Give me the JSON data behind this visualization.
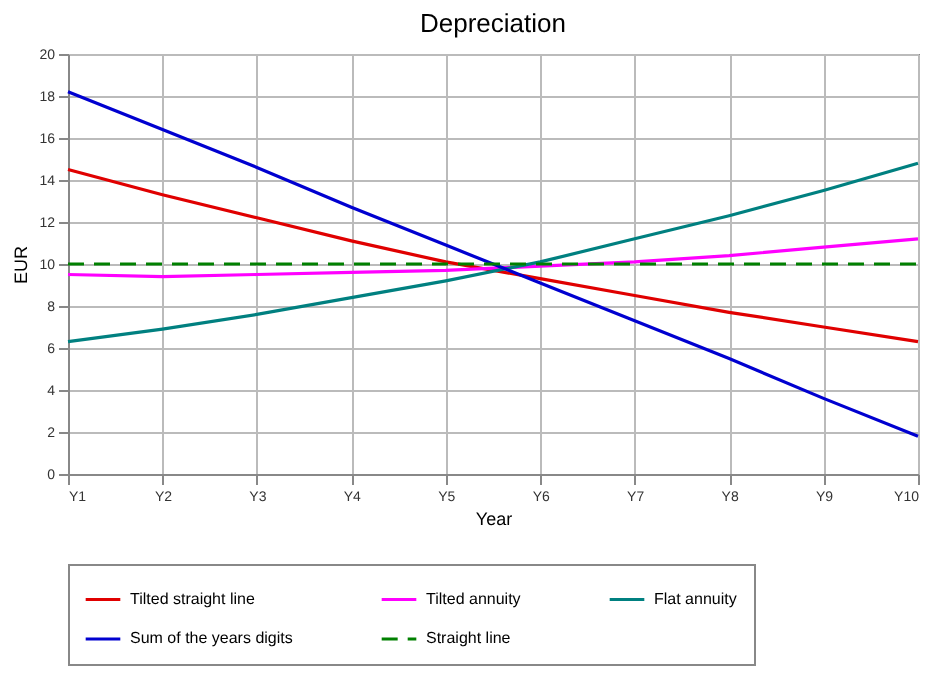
{
  "chart_data": {
    "type": "line",
    "title": "Depreciation",
    "xlabel": "Year",
    "ylabel": "EUR",
    "categories": [
      "Y1",
      "Y2",
      "Y3",
      "Y4",
      "Y5",
      "Y6",
      "Y7",
      "Y8",
      "Y9",
      "Y10"
    ],
    "series": [
      {
        "name": "Tilted straight line",
        "color": "#e00000",
        "line_style": "solid",
        "values": [
          14.5,
          13.3,
          12.2,
          11.1,
          10.1,
          9.3,
          8.5,
          7.7,
          7.0,
          6.3
        ]
      },
      {
        "name": "Tilted annuity",
        "color": "#ff00ff",
        "line_style": "solid",
        "values": [
          9.5,
          9.4,
          9.5,
          9.6,
          9.7,
          9.9,
          10.1,
          10.4,
          10.8,
          11.2
        ]
      },
      {
        "name": "Flat annuity",
        "color": "#008080",
        "line_style": "solid",
        "values": [
          6.3,
          6.9,
          7.6,
          8.4,
          9.2,
          10.1,
          11.2,
          12.3,
          13.5,
          14.8
        ]
      },
      {
        "name": "Sum of the years digits",
        "color": "#0000d0",
        "line_style": "solid",
        "values": [
          18.2,
          16.4,
          14.6,
          12.7,
          10.9,
          9.1,
          7.3,
          5.5,
          3.6,
          1.8
        ]
      },
      {
        "name": "Straight line",
        "color": "#008000",
        "line_style": "dashed",
        "values": [
          10,
          10,
          10,
          10,
          10,
          10,
          10,
          10,
          10,
          10
        ]
      }
    ],
    "ylim": [
      0,
      20
    ],
    "yticks": [
      0,
      2,
      4,
      6,
      8,
      10,
      12,
      14,
      16,
      18,
      20
    ],
    "grid": true,
    "legend": "bottom",
    "marker": "none"
  }
}
